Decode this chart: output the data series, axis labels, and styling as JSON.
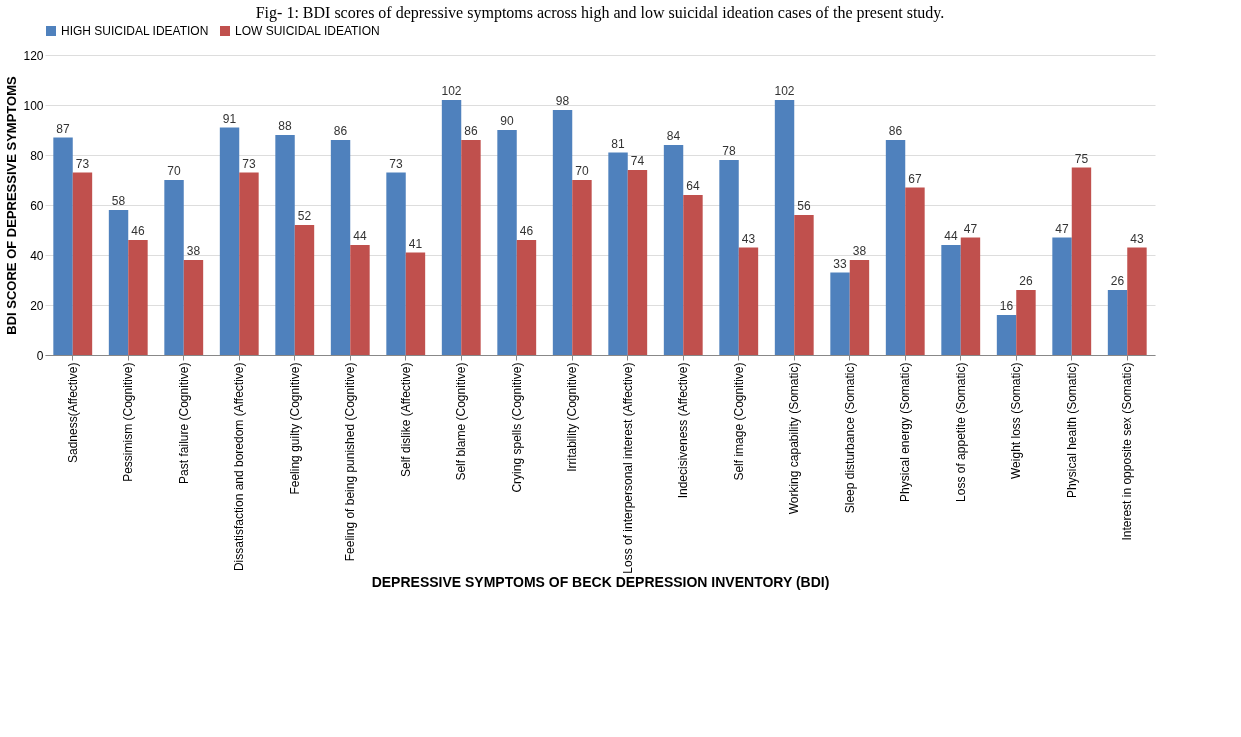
{
  "chart_data": {
    "type": "bar",
    "title": "Fig- 1: BDI scores of depressive symptoms across high and low suicidal ideation cases of the present study.",
    "xlabel": "DEPRESSIVE SYMPTOMS OF BECK DEPRESSION INVENTORY (BDI)",
    "ylabel": "BDI SCORE OF DEPRESSIVE SYMPTOMS",
    "categories": [
      "Sadness(Affective)",
      "Pessimism (Cognitive)",
      "Past failure (Cognitive)",
      "Dissatisfaction  and boredom (Affective)",
      "Feeling guilty (Cognitive)",
      "Feeling of being punished (Cognitive)",
      "Self dislike (Affective)",
      "Self blame (Cognitive)",
      "Crying spells (Cognitive)",
      "Irritability (Cognitive)",
      "Loss of interpersonal interest (Affective)",
      "Indecisiveness (Affective)",
      "Self image (Cognitive)",
      "Working capability (Somatic)",
      "Sleep disturbance (Somatic)",
      "Physical energy (Somatic)",
      "Loss of appetite (Somatic)",
      "Weight loss (Somatic)",
      "Physical health (Somatic)",
      "Interest in opposite sex (Somatic)"
    ],
    "series": [
      {
        "name": "HIGH SUICIDAL IDEATION",
        "color": "#4f81bd",
        "values": [
          87,
          58,
          70,
          91,
          88,
          86,
          73,
          102,
          90,
          98,
          81,
          84,
          78,
          102,
          33,
          86,
          44,
          16,
          47,
          26
        ]
      },
      {
        "name": "LOW SUICIDAL IDEATION",
        "color": "#c0504d",
        "values": [
          73,
          46,
          38,
          73,
          52,
          44,
          41,
          86,
          46,
          70,
          74,
          64,
          43,
          56,
          38,
          67,
          47,
          26,
          75,
          43
        ]
      }
    ],
    "ylim": [
      0,
      120
    ],
    "yticks": [
      0,
      20,
      40,
      60,
      80,
      100,
      120
    ],
    "grid": "y",
    "legend": "top",
    "data_labels": true
  }
}
